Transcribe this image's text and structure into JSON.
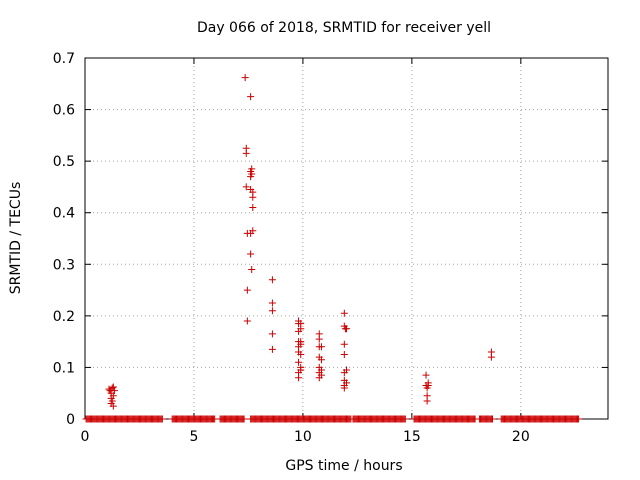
{
  "chart_data": {
    "type": "scatter",
    "title": "Day 066 of 2018, SRMTID for receiver yell",
    "xlabel": "GPS time / hours",
    "ylabel": "SRMTID / TECUs",
    "xlim": [
      0,
      24
    ],
    "ylim": [
      0,
      0.7
    ],
    "xticks": [
      0,
      5,
      10,
      15,
      20
    ],
    "yticks": [
      0,
      0.1,
      0.2,
      0.3,
      0.4,
      0.5,
      0.6,
      0.7
    ],
    "grid": true,
    "marker": "+",
    "color": "#cc0000",
    "baseline": {
      "x_start": 0.05,
      "x_end": 22.65,
      "step": 0.05,
      "y": 0.0,
      "gaps": [
        [
          3.55,
          4.0
        ],
        [
          5.95,
          6.2
        ],
        [
          7.3,
          7.6
        ],
        [
          12.2,
          12.3
        ],
        [
          14.7,
          15.1
        ],
        [
          17.9,
          18.1
        ],
        [
          18.7,
          19.1
        ]
      ]
    },
    "points": [
      [
        1.1,
        0.058
      ],
      [
        1.15,
        0.055
      ],
      [
        1.2,
        0.05
      ],
      [
        1.2,
        0.04
      ],
      [
        1.2,
        0.03
      ],
      [
        1.25,
        0.06
      ],
      [
        1.25,
        0.035
      ],
      [
        1.3,
        0.062
      ],
      [
        1.3,
        0.025
      ],
      [
        1.3,
        0.045
      ],
      [
        1.35,
        0.055
      ],
      [
        7.35,
        0.662
      ],
      [
        7.4,
        0.525
      ],
      [
        7.4,
        0.515
      ],
      [
        7.4,
        0.45
      ],
      [
        7.45,
        0.36
      ],
      [
        7.45,
        0.25
      ],
      [
        7.45,
        0.19
      ],
      [
        7.6,
        0.625
      ],
      [
        7.6,
        0.48
      ],
      [
        7.6,
        0.47
      ],
      [
        7.6,
        0.445
      ],
      [
        7.6,
        0.36
      ],
      [
        7.6,
        0.32
      ],
      [
        7.65,
        0.29
      ],
      [
        7.65,
        0.485
      ],
      [
        7.65,
        0.475
      ],
      [
        7.7,
        0.44
      ],
      [
        7.7,
        0.43
      ],
      [
        7.7,
        0.41
      ],
      [
        7.7,
        0.365
      ],
      [
        8.6,
        0.27
      ],
      [
        8.6,
        0.225
      ],
      [
        8.6,
        0.21
      ],
      [
        8.6,
        0.165
      ],
      [
        8.6,
        0.135
      ],
      [
        9.8,
        0.19
      ],
      [
        9.8,
        0.185
      ],
      [
        9.8,
        0.17
      ],
      [
        9.8,
        0.15
      ],
      [
        9.8,
        0.14
      ],
      [
        9.8,
        0.13
      ],
      [
        9.8,
        0.11
      ],
      [
        9.8,
        0.09
      ],
      [
        9.8,
        0.08
      ],
      [
        9.9,
        0.185
      ],
      [
        9.9,
        0.175
      ],
      [
        9.9,
        0.15
      ],
      [
        9.9,
        0.145
      ],
      [
        9.9,
        0.125
      ],
      [
        9.9,
        0.1
      ],
      [
        9.9,
        0.095
      ],
      [
        10.75,
        0.165
      ],
      [
        10.75,
        0.155
      ],
      [
        10.75,
        0.14
      ],
      [
        10.75,
        0.12
      ],
      [
        10.75,
        0.1
      ],
      [
        10.75,
        0.09
      ],
      [
        10.75,
        0.08
      ],
      [
        10.85,
        0.14
      ],
      [
        10.85,
        0.115
      ],
      [
        10.85,
        0.095
      ],
      [
        10.85,
        0.085
      ],
      [
        11.9,
        0.205
      ],
      [
        11.9,
        0.18
      ],
      [
        11.9,
        0.145
      ],
      [
        11.9,
        0.125
      ],
      [
        11.9,
        0.09
      ],
      [
        11.9,
        0.075
      ],
      [
        11.9,
        0.065
      ],
      [
        11.9,
        0.06
      ],
      [
        11.95,
        0.175
      ],
      [
        12.0,
        0.175
      ],
      [
        12.0,
        0.095
      ],
      [
        12.0,
        0.07
      ],
      [
        15.65,
        0.085
      ],
      [
        15.65,
        0.065
      ],
      [
        15.7,
        0.06
      ],
      [
        15.7,
        0.045
      ],
      [
        15.7,
        0.035
      ],
      [
        15.75,
        0.07
      ],
      [
        15.75,
        0.065
      ],
      [
        18.65,
        0.13
      ],
      [
        18.65,
        0.12
      ]
    ]
  }
}
